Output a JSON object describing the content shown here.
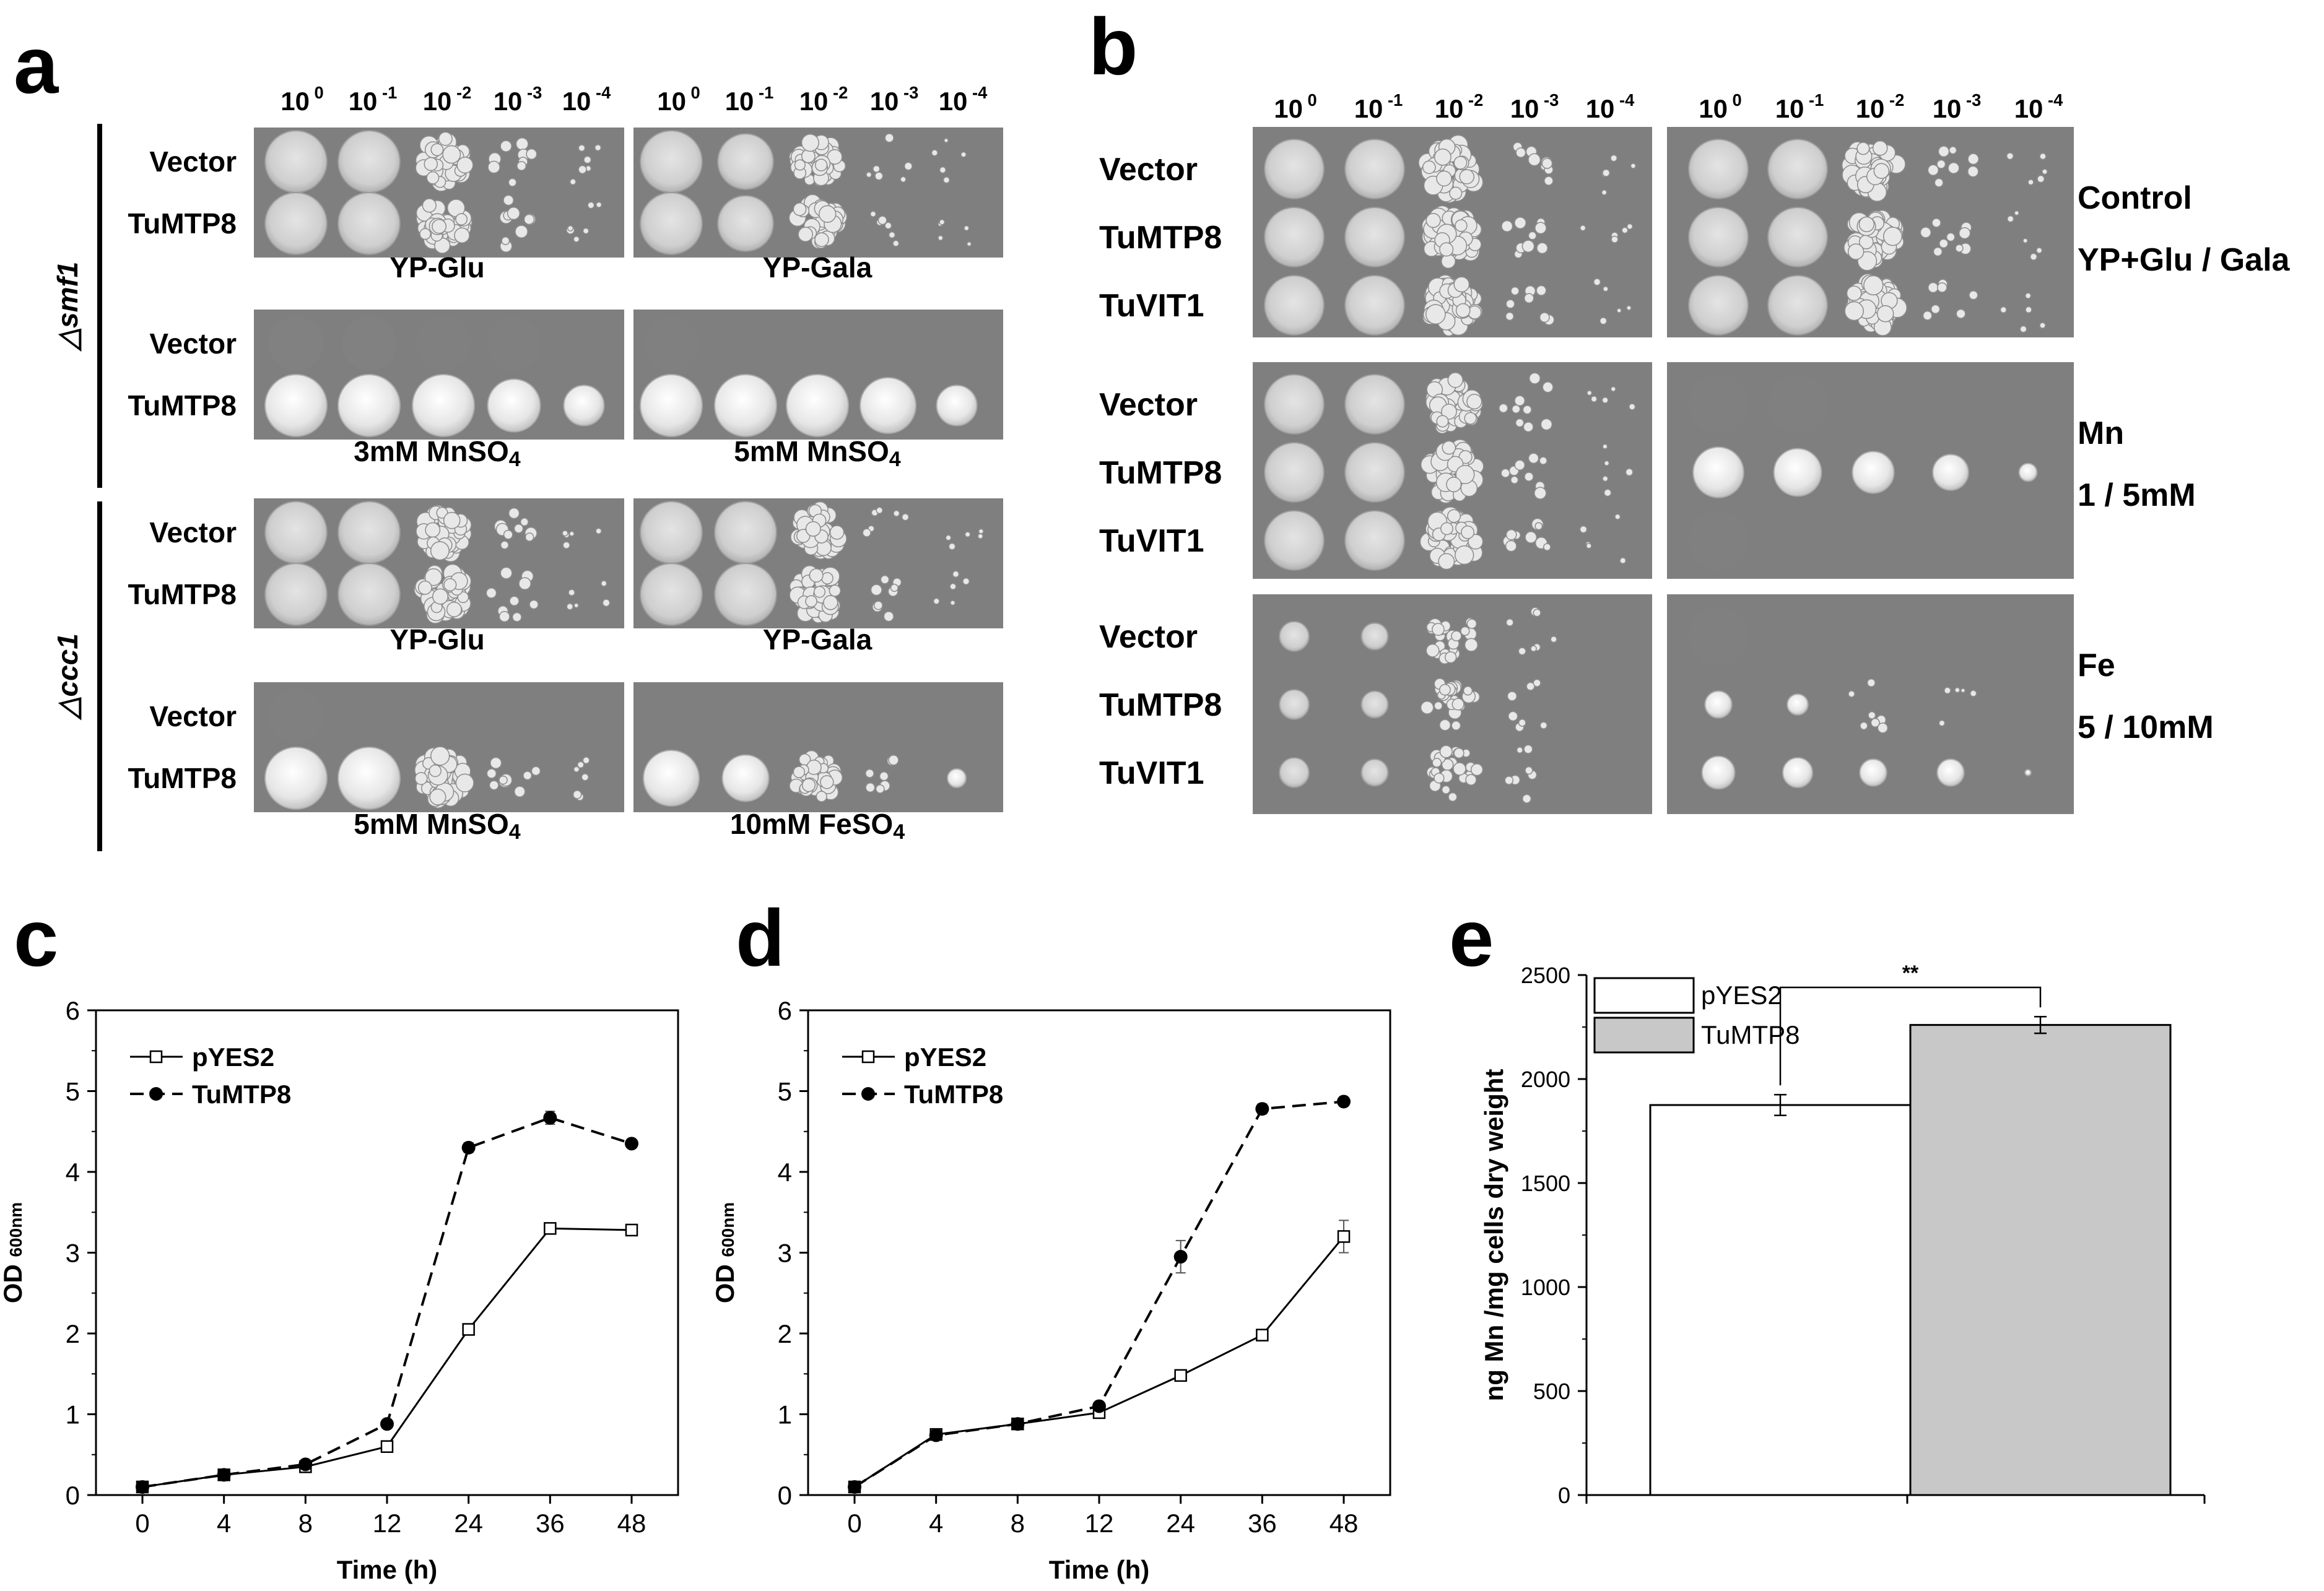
{
  "figure": {
    "panel_labels": [
      "a",
      "b",
      "c",
      "d",
      "e"
    ],
    "dilution_base": "10",
    "dilution_exponents": [
      "0",
      "-1",
      "-2",
      "-3",
      "-4"
    ],
    "panel_a": {
      "strains": [
        "△smf1",
        "△ccc1"
      ],
      "rows": [
        {
          "labels": [
            "Vector",
            "TuMTP8"
          ],
          "left_caption": "YP-Glu",
          "right_caption": "YP-Gala"
        },
        {
          "labels": [
            "Vector",
            "TuMTP8"
          ],
          "left_caption": "3mM MnSO",
          "left_sub": "4",
          "right_caption": "5mM MnSO",
          "right_sub": "4"
        },
        {
          "labels": [
            "Vector",
            "TuMTP8"
          ],
          "left_caption": "YP-Glu",
          "right_caption": "YP-Gala"
        },
        {
          "labels": [
            "Vector",
            "TuMTP8"
          ],
          "left_caption": "5mM MnSO",
          "left_sub": "4",
          "right_caption": "10mM FeSO",
          "right_sub": "4"
        }
      ]
    },
    "panel_b": {
      "strains": [
        "Vector",
        "TuMTP8",
        "TuVIT1"
      ],
      "conditions": [
        {
          "line1": "Control",
          "line2": "YP+Glu / Gala"
        },
        {
          "line1": "Mn",
          "line2": "1 / 5mM"
        },
        {
          "line1": "Fe",
          "line2": "5 / 10mM"
        }
      ]
    }
  },
  "chart_data": [
    {
      "type": "line",
      "panel": "c",
      "x": [
        "0",
        "4",
        "8",
        "12",
        "24",
        "36",
        "48"
      ],
      "xlabel": "Time (h)",
      "ylabel": "OD",
      "ylabel_sub": "600nm",
      "ylim": [
        0,
        6
      ],
      "yticks": [
        "0",
        "1",
        "2",
        "3",
        "4",
        "5",
        "6"
      ],
      "series": [
        {
          "name": "pYES2",
          "values": [
            0.1,
            0.25,
            0.35,
            0.6,
            2.05,
            3.3,
            3.28
          ],
          "errors": [
            0.02,
            0.02,
            0.02,
            0.03,
            0.04,
            0.05,
            0.06
          ]
        },
        {
          "name": "TuMTP8",
          "values": [
            0.1,
            0.25,
            0.38,
            0.88,
            4.3,
            4.67,
            4.35
          ],
          "errors": [
            0.02,
            0.02,
            0.02,
            0.03,
            0.06,
            0.08,
            0.04
          ]
        }
      ]
    },
    {
      "type": "line",
      "panel": "d",
      "x": [
        "0",
        "4",
        "8",
        "12",
        "24",
        "36",
        "48"
      ],
      "xlabel": "Time (h)",
      "ylabel": "OD",
      "ylabel_sub": "600nm",
      "ylim": [
        0,
        6
      ],
      "yticks": [
        "0",
        "1",
        "2",
        "3",
        "4",
        "5",
        "6"
      ],
      "series": [
        {
          "name": "pYES2",
          "values": [
            0.1,
            0.75,
            0.88,
            1.02,
            1.48,
            1.98,
            3.2
          ],
          "errors": [
            0.02,
            0.03,
            0.03,
            0.03,
            0.04,
            0.05,
            0.2
          ]
        },
        {
          "name": "TuMTP8",
          "values": [
            0.1,
            0.74,
            0.88,
            1.1,
            2.95,
            4.78,
            4.87
          ],
          "errors": [
            0.02,
            0.03,
            0.03,
            0.04,
            0.2,
            0.06,
            0.04
          ]
        }
      ]
    },
    {
      "type": "bar",
      "panel": "e",
      "categories": [
        "pYES2",
        "TuMTP8"
      ],
      "values": [
        1875,
        2260
      ],
      "errors": [
        50,
        40
      ],
      "colors": [
        "#ffffff",
        "#c8c8c8"
      ],
      "ylabel": "ng Mn /mg cells dry weight",
      "ylim": [
        0,
        2500
      ],
      "yticks": [
        "0",
        "500",
        "1000",
        "1500",
        "2000",
        "2500"
      ],
      "significance": "**",
      "legend_position": "top-left"
    }
  ]
}
